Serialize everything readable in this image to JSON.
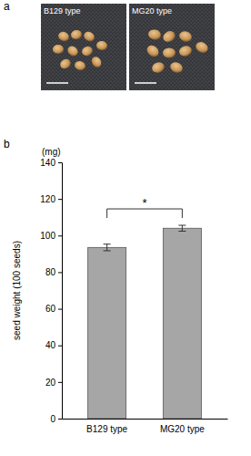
{
  "figure": {
    "panel_labels": [
      "a",
      "b"
    ],
    "photo_labels": [
      "B129 type",
      "MG20 type"
    ]
  },
  "chart_data": {
    "type": "bar",
    "y_label": "seed weight (100 seeds)",
    "y_unit": "(mg)",
    "categories": [
      "B129 type",
      "MG20 type"
    ],
    "values": [
      93.5,
      104
    ],
    "errors": [
      1.8,
      1.6
    ],
    "color": "#a6a6a6",
    "ylim": [
      0,
      140
    ],
    "yticks": [
      0,
      20,
      40,
      60,
      80,
      100,
      120,
      140
    ],
    "annotations": [
      {
        "text": "*"
      }
    ]
  }
}
